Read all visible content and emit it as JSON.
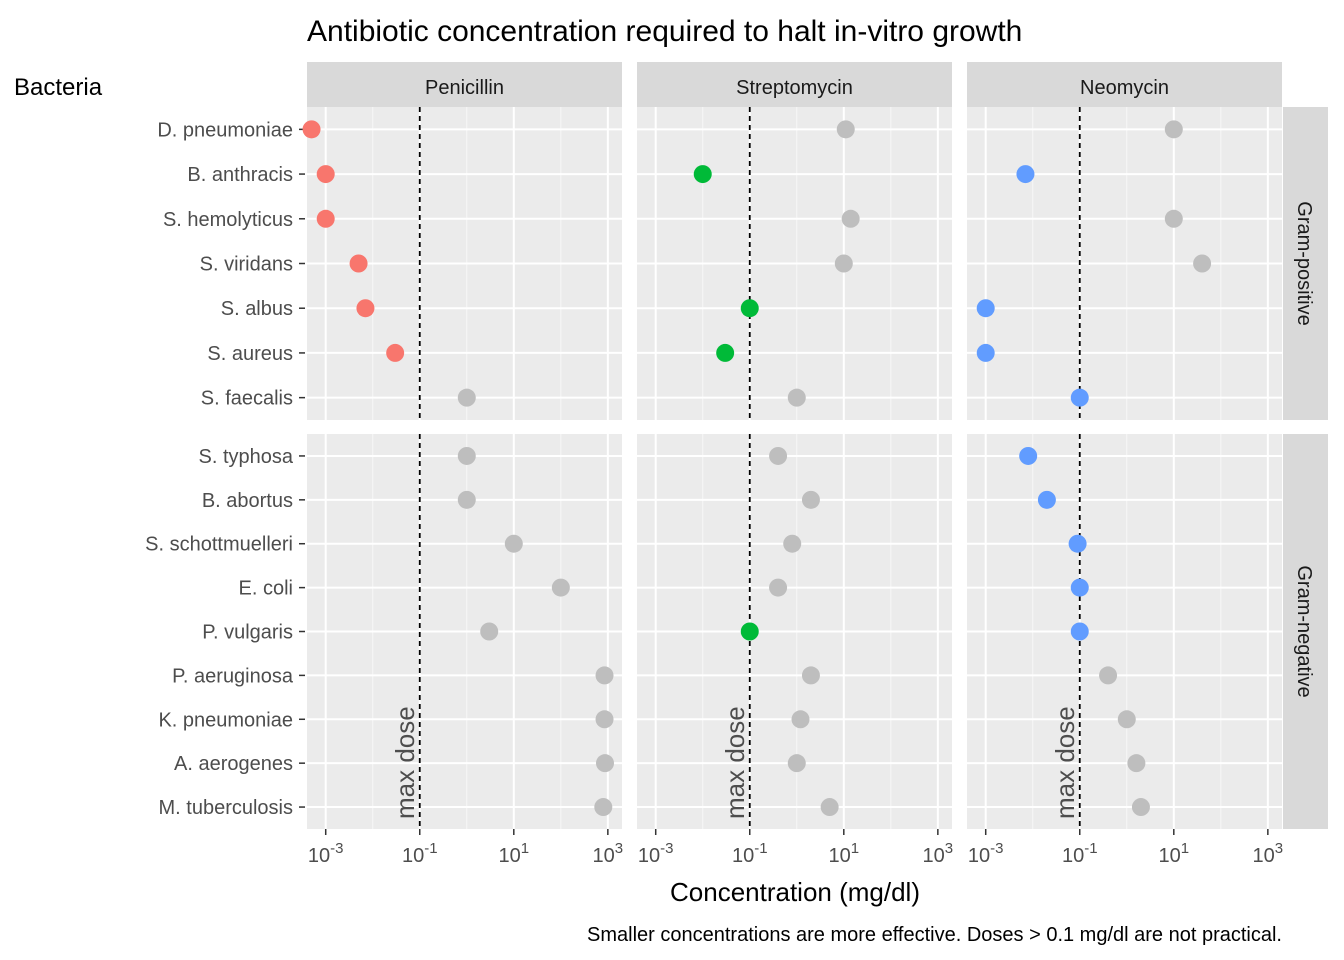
{
  "chart_data": {
    "type": "scatter",
    "title": "Antibiotic concentration required to halt in-vitro growth",
    "ylabel": "Bacteria",
    "xlabel": "Concentration (mg/dl)",
    "caption": "Smaller concentrations are more effective. Doses > 0.1 mg/dl are not practical.",
    "x_scale": "log10",
    "xlim": [
      0.0004,
      2000
    ],
    "x_ticks": [
      0.001,
      0.1,
      10,
      1000
    ],
    "x_tick_labels": [
      {
        "base": "10",
        "exp": "-3"
      },
      {
        "base": "10",
        "exp": "-1"
      },
      {
        "base": "10",
        "exp": "1"
      },
      {
        "base": "10",
        "exp": "3"
      }
    ],
    "reference_line": {
      "x": 0.1,
      "label": "max dose",
      "style": "dashed"
    },
    "columns": [
      {
        "name": "Penicillin",
        "color": "#F8766D"
      },
      {
        "name": "Streptomycin",
        "color": "#00BA38"
      },
      {
        "name": "Neomycin",
        "color": "#619CFF"
      }
    ],
    "inactive_color": "#bebebe",
    "rows": [
      {
        "name": "Gram-positive",
        "bacteria": [
          "D. pneumoniae",
          "B. anthracis",
          "S. hemolyticus",
          "S. viridans",
          "S. albus",
          "S. aureus",
          "S. faecalis"
        ],
        "values": {
          "Penicillin": [
            0.0005,
            0.001,
            0.001,
            0.005,
            0.007,
            0.03,
            1
          ],
          "Streptomycin": [
            11,
            0.01,
            14,
            10,
            0.1,
            0.03,
            1
          ],
          "Neomycin": [
            10,
            0.007,
            10,
            40,
            0.001,
            0.001,
            0.1
          ]
        }
      },
      {
        "name": "Gram-negative",
        "bacteria": [
          "S. typhosa",
          "B. abortus",
          "S. schottmuelleri",
          "E. coli",
          "P. vulgaris",
          "P. aeruginosa",
          "K. pneumoniae",
          "A. aerogenes",
          "M. tuberculosis"
        ],
        "values": {
          "Penicillin": [
            1,
            1,
            10,
            100,
            3,
            850,
            850,
            870,
            800
          ],
          "Streptomycin": [
            0.4,
            2,
            0.8,
            0.4,
            0.1,
            2,
            1.2,
            1,
            5
          ],
          "Neomycin": [
            0.008,
            0.02,
            0.09,
            0.1,
            0.1,
            0.4,
            1,
            1.6,
            2
          ]
        }
      }
    ]
  }
}
